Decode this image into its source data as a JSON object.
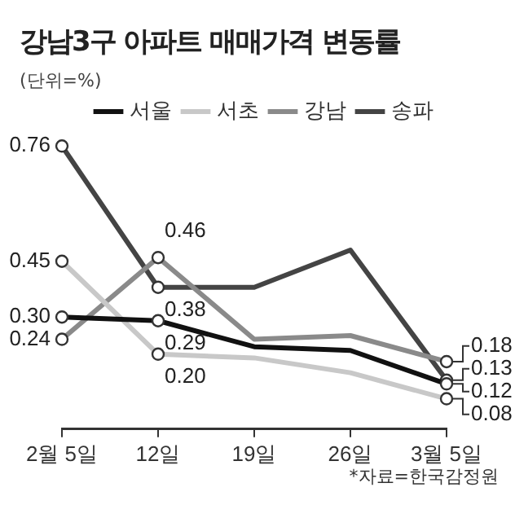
{
  "chart_data": {
    "type": "line",
    "title": "강남3구 아파트 매매가격 변동률",
    "subtitle": "(단위=%)",
    "categories": [
      "2월 5일",
      "12일",
      "19일",
      "26일",
      "3월 5일"
    ],
    "series": [
      {
        "name": "서울",
        "color": "#111111",
        "values": [
          0.3,
          0.29,
          0.22,
          0.21,
          0.12
        ],
        "value_labels": [
          "0.30",
          "0.29",
          null,
          null,
          "0.12"
        ]
      },
      {
        "name": "서초",
        "color": "#c8c8c8",
        "values": [
          0.45,
          0.2,
          0.19,
          0.15,
          0.08
        ],
        "value_labels": [
          "0.45",
          "0.20",
          null,
          null,
          "0.08"
        ]
      },
      {
        "name": "강남",
        "color": "#8a8a8a",
        "values": [
          0.24,
          0.46,
          0.24,
          0.25,
          0.18
        ],
        "value_labels": [
          "0.24",
          "0.46",
          null,
          null,
          "0.18"
        ]
      },
      {
        "name": "송파",
        "color": "#444444",
        "values": [
          0.76,
          0.38,
          0.38,
          0.48,
          0.13
        ],
        "value_labels": [
          "0.76",
          "0.38",
          null,
          null,
          "0.13"
        ]
      }
    ],
    "legend": "top right",
    "marker": "circle",
    "line_style": "solid",
    "grid": false,
    "tick_labels": "x",
    "annotations": [
      "*자료=한국감정원"
    ]
  }
}
